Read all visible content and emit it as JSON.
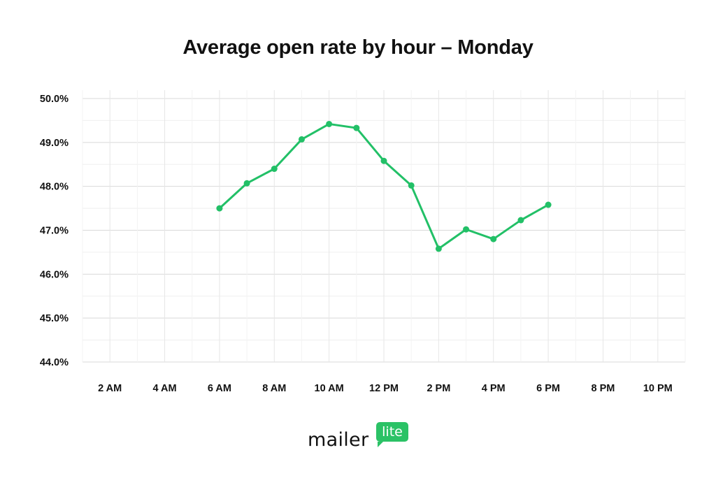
{
  "chart_data": {
    "type": "line",
    "title": "Average open rate by hour – Monday",
    "xlabel": "",
    "ylabel": "",
    "x_ticks": [
      {
        "hour": 2,
        "label": "2 AM"
      },
      {
        "hour": 4,
        "label": "4 AM"
      },
      {
        "hour": 6,
        "label": "6 AM"
      },
      {
        "hour": 8,
        "label": "8 AM"
      },
      {
        "hour": 10,
        "label": "10 AM"
      },
      {
        "hour": 12,
        "label": "12 PM"
      },
      {
        "hour": 14,
        "label": "2 PM"
      },
      {
        "hour": 16,
        "label": "4 PM"
      },
      {
        "hour": 18,
        "label": "6 PM"
      },
      {
        "hour": 20,
        "label": "8 PM"
      },
      {
        "hour": 22,
        "label": "10 PM"
      }
    ],
    "y_ticks": [
      {
        "value": 44.0,
        "label": "44.0%"
      },
      {
        "value": 45.0,
        "label": "45.0%"
      },
      {
        "value": 46.0,
        "label": "46.0%"
      },
      {
        "value": 47.0,
        "label": "47.0%"
      },
      {
        "value": 48.0,
        "label": "48.0%"
      },
      {
        "value": 49.0,
        "label": "49.0%"
      },
      {
        "value": 50.0,
        "label": "50.0%"
      }
    ],
    "xlim": [
      1,
      23
    ],
    "ylim": [
      44.0,
      50.0
    ],
    "grid": true,
    "series": [
      {
        "color": "#22c067",
        "points": [
          {
            "hour": 6,
            "value": 47.5
          },
          {
            "hour": 7,
            "value": 48.07
          },
          {
            "hour": 8,
            "value": 48.4
          },
          {
            "hour": 9,
            "value": 49.07
          },
          {
            "hour": 10,
            "value": 49.42
          },
          {
            "hour": 11,
            "value": 49.33
          },
          {
            "hour": 12,
            "value": 48.58
          },
          {
            "hour": 13,
            "value": 48.02
          },
          {
            "hour": 14,
            "value": 46.58
          },
          {
            "hour": 15,
            "value": 47.02
          },
          {
            "hour": 16,
            "value": 46.8
          },
          {
            "hour": 17,
            "value": 47.23
          },
          {
            "hour": 18,
            "value": 47.58
          }
        ]
      }
    ]
  },
  "logo": {
    "word": "mailer",
    "badge": "lite",
    "badge_color": "#2bc266"
  }
}
